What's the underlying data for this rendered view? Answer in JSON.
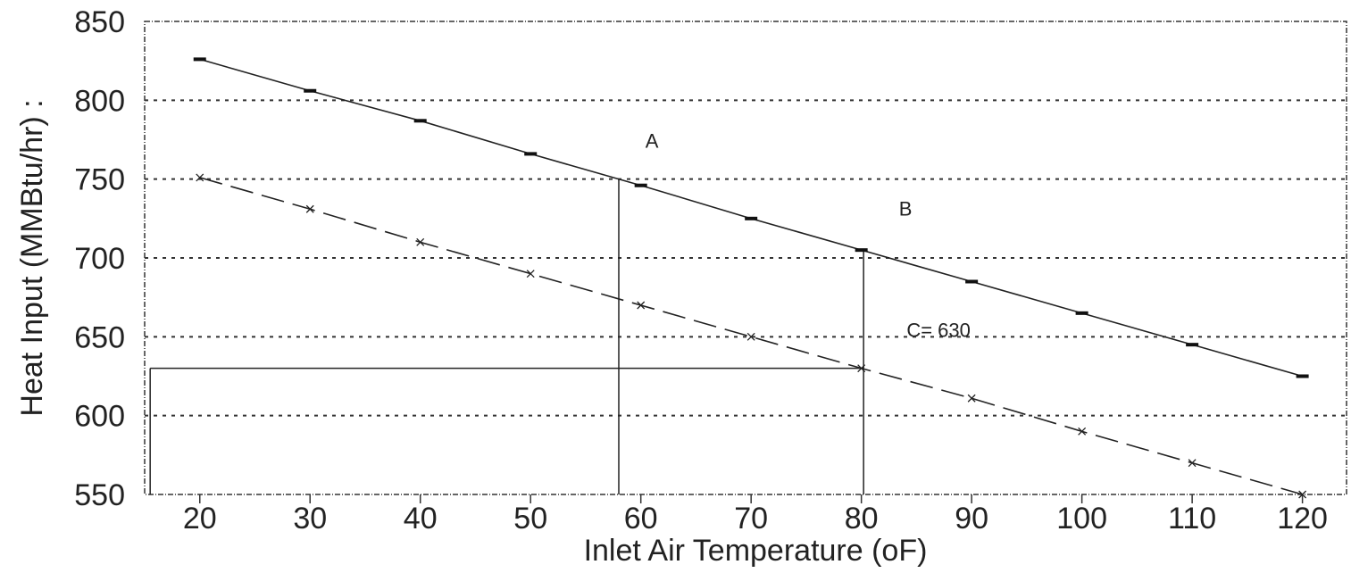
{
  "chart_data": {
    "type": "line",
    "xlabel": "Inlet Air Temperature (oF)",
    "ylabel": "Heat Input (MMBtu/hr) :",
    "xlim": [
      15,
      124
    ],
    "ylim": [
      550,
      850
    ],
    "x_ticks": [
      20,
      30,
      40,
      50,
      60,
      70,
      80,
      90,
      100,
      110,
      120
    ],
    "y_ticks": [
      550,
      600,
      650,
      700,
      750,
      800,
      850
    ],
    "x_tick_labels": [
      "20",
      "30",
      "40",
      "50",
      "60",
      "70",
      "80",
      "90",
      "100",
      "110",
      "120"
    ],
    "y_tick_labels": [
      "550",
      "600",
      "650",
      "700",
      "750",
      "800",
      "850"
    ],
    "grid": "horizontal dotted",
    "series": [
      {
        "style": "solid",
        "marker": "bar",
        "x": [
          20,
          30,
          40,
          50,
          60,
          70,
          80,
          90,
          100,
          110,
          120
        ],
        "values": [
          826,
          806,
          787,
          766,
          746,
          725,
          705,
          685,
          665,
          645,
          625
        ]
      },
      {
        "style": "dashed",
        "marker": "x",
        "x": [
          20,
          30,
          40,
          50,
          60,
          70,
          80,
          90,
          100,
          110,
          120
        ],
        "values": [
          751,
          731,
          710,
          690,
          670,
          650,
          630,
          611,
          590,
          570,
          550
        ]
      }
    ],
    "guides": {
      "vertical_a": {
        "x": 58,
        "from": 550,
        "to": 750
      },
      "vertical_b": {
        "x": 80.2,
        "from": 550,
        "to": 704
      },
      "vertical_left": {
        "x": 15.5,
        "from": 550,
        "to": 630
      },
      "horizontal_c": {
        "y": 630,
        "from": 15.5,
        "to": 80.2
      }
    },
    "annotations": [
      {
        "text": "A",
        "x": 61,
        "y": 770
      },
      {
        "text": "B",
        "x": 84,
        "y": 727
      },
      {
        "text": "C= 630",
        "x": 87,
        "y": 650
      }
    ]
  }
}
